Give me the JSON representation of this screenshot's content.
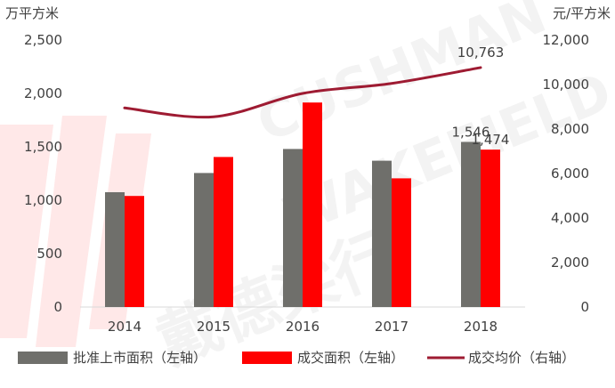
{
  "chart_data": {
    "type": "bar",
    "categories": [
      "2014",
      "2015",
      "2016",
      "2017",
      "2018"
    ],
    "y_left_unit": "万平方米",
    "y_right_unit": "元/平方米",
    "y_left_ticks": [
      "0",
      "500",
      "1,000",
      "1,500",
      "2,000",
      "2,500"
    ],
    "y_right_ticks": [
      "0",
      "2,000",
      "4,000",
      "6,000",
      "8,000",
      "10,000",
      "12,000"
    ],
    "ylim_left": [
      0,
      2500
    ],
    "ylim_right": [
      0,
      12000
    ],
    "grid": false,
    "legend_position": "bottom",
    "series": [
      {
        "name": "批准上市面积（左轴）",
        "type": "bar",
        "axis": "left",
        "color": "#6f6f6b",
        "values": [
          1075,
          1255,
          1480,
          1370,
          1546
        ]
      },
      {
        "name": "成交面积（左轴）",
        "type": "bar",
        "axis": "left",
        "color": "#ff0000",
        "values": [
          1040,
          1405,
          1915,
          1205,
          1474
        ]
      },
      {
        "name": "成交均价（右轴）",
        "type": "line",
        "axis": "right",
        "color": "#9e1b32",
        "values": [
          8950,
          8550,
          9600,
          10050,
          10763
        ]
      }
    ],
    "data_labels": [
      {
        "series": 0,
        "index": 4,
        "text": "1,546"
      },
      {
        "series": 1,
        "index": 4,
        "text": "1,474"
      },
      {
        "series": 2,
        "index": 4,
        "text": "10,763"
      }
    ]
  },
  "watermark": {
    "text": "CUSHMAN & WAKEFIELD 戴德梁行"
  }
}
